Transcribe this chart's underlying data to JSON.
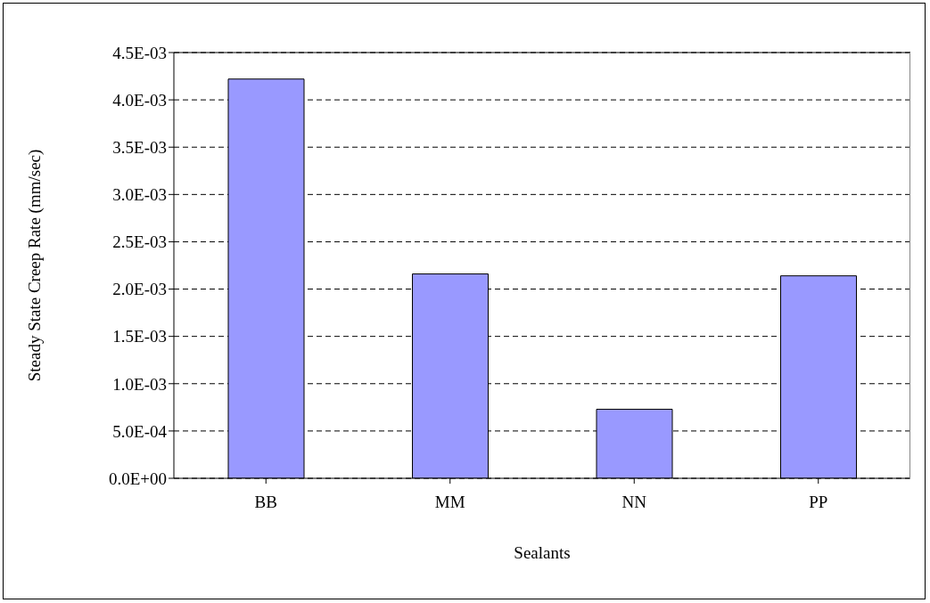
{
  "chart_data": {
    "type": "bar",
    "xlabel": "Sealants",
    "ylabel": "Steady State Creep Rate (mm/sec)",
    "categories": [
      "BB",
      "MM",
      "NN",
      "PP"
    ],
    "values": [
      0.00422,
      0.00216,
      0.00073,
      0.00214
    ],
    "color": "#9999ff",
    "ylim": [
      0,
      0.0045
    ],
    "yticks": [
      {
        "value": 0,
        "label": "0.0E+00"
      },
      {
        "value": 0.0005,
        "label": "5.0E-04"
      },
      {
        "value": 0.001,
        "label": "1.0E-03"
      },
      {
        "value": 0.0015,
        "label": "1.5E-03"
      },
      {
        "value": 0.002,
        "label": "2.0E-03"
      },
      {
        "value": 0.0025,
        "label": "2.5E-03"
      },
      {
        "value": 0.003,
        "label": "3.0E-03"
      },
      {
        "value": 0.0035,
        "label": "3.5E-03"
      },
      {
        "value": 0.004,
        "label": "4.0E-03"
      },
      {
        "value": 0.0045,
        "label": "4.5E-03"
      }
    ],
    "grid": "y"
  }
}
